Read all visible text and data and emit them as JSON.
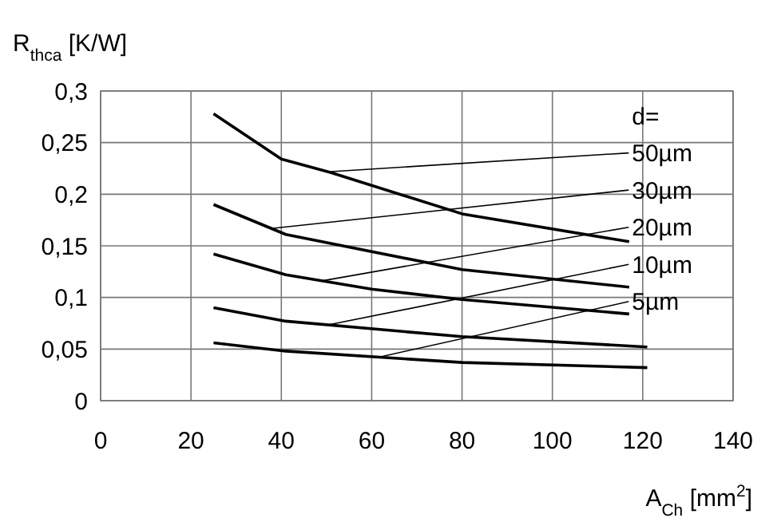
{
  "chart_data": {
    "type": "line",
    "xlabel": "A$_{Ch}$ [mm$^{2}$]",
    "ylabel": "R$_{thca}$ [K/W]",
    "legend_title": "d=",
    "legend": "right",
    "grid": true,
    "line_style": "solid",
    "xlim": [
      0,
      140
    ],
    "xticks": [
      0,
      20,
      40,
      60,
      80,
      100,
      120,
      140
    ],
    "ylim": [
      0,
      0.3
    ],
    "yticks": [
      0,
      {
        "value": 0.05,
        "label": "0,05"
      },
      {
        "value": 0.1,
        "label": "0,1"
      },
      {
        "value": 0.15,
        "label": "0,15"
      },
      {
        "value": 0.2,
        "label": "0,2"
      },
      {
        "value": 0.25,
        "label": "0,25"
      },
      {
        "value": 0.3,
        "label": "0,3"
      }
    ],
    "series": [
      {
        "name": "50µm",
        "color": "#000000",
        "x": [
          25,
          40,
          51,
          80,
          117
        ],
        "values": [
          0.278,
          0.234,
          0.221,
          0.181,
          0.154
        ]
      },
      {
        "name": "30µm",
        "color": "#000000",
        "x": [
          25,
          41,
          80,
          117
        ],
        "values": [
          0.19,
          0.161,
          0.127,
          0.11
        ]
      },
      {
        "name": "20µm",
        "color": "#000000",
        "x": [
          25,
          41,
          60,
          80,
          117
        ],
        "values": [
          0.142,
          0.122,
          0.108,
          0.098,
          0.084
        ]
      },
      {
        "name": "10µm",
        "color": "#000000",
        "x": [
          25,
          41,
          80,
          121
        ],
        "values": [
          0.09,
          0.077,
          0.062,
          0.052
        ]
      },
      {
        "name": "5µm",
        "color": "#000000",
        "x": [
          25,
          41,
          80,
          121
        ],
        "values": [
          0.056,
          0.048,
          0.037,
          0.032
        ]
      }
    ]
  }
}
